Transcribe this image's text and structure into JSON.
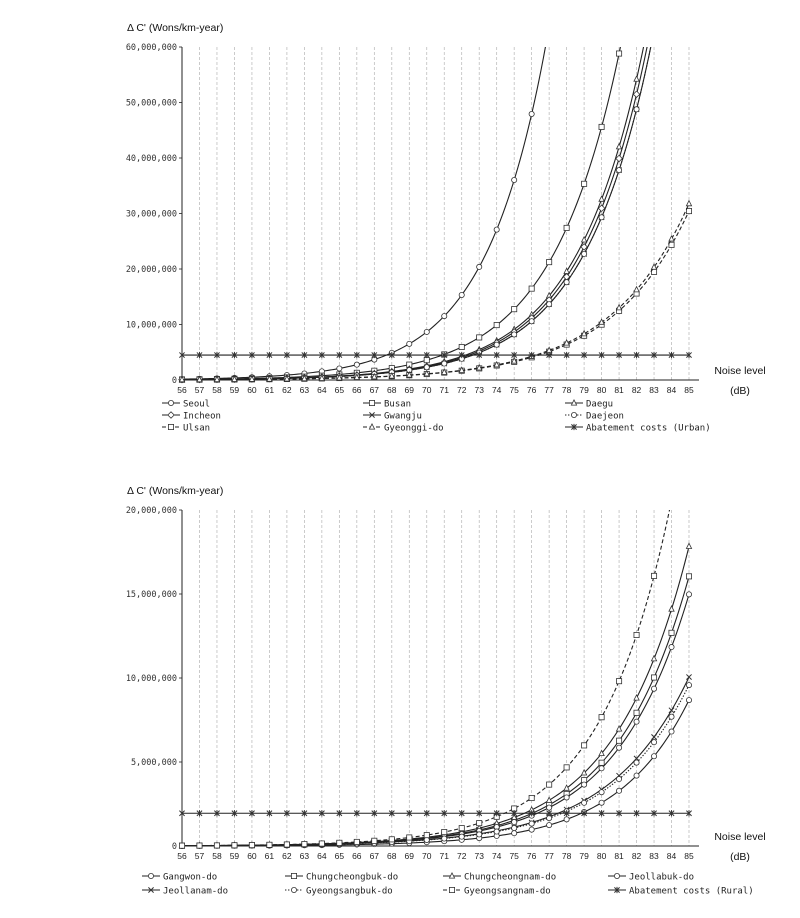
{
  "chart_data": [
    {
      "type": "line",
      "ylabel": "Δ C' (Wons/km-year)",
      "xlabel_line1": "Noise level",
      "xlabel_line2": "(dB)",
      "x": [
        56,
        57,
        58,
        59,
        60,
        61,
        62,
        63,
        64,
        65,
        66,
        67,
        68,
        69,
        70,
        71,
        72,
        73,
        74,
        75,
        76,
        77,
        78,
        79,
        80,
        81,
        82,
        83,
        84,
        85
      ],
      "xlim": [
        56,
        85
      ],
      "ylim": [
        0,
        60000000
      ],
      "yticks": [
        0,
        10000000,
        20000000,
        30000000,
        40000000,
        50000000,
        60000000
      ],
      "ytick_labels": [
        "0",
        "10,000,000",
        "20,000,000",
        "30,000,000",
        "40,000,000",
        "50,000,000",
        "60,000,000"
      ],
      "grid": "vertical dashed",
      "legend_position": "bottom",
      "series": [
        {
          "name": "Seoul",
          "marker": "circle",
          "dash": "solid",
          "model": {
            "a": 60,
            "b": 500000,
            "c": 1.33
          }
        },
        {
          "name": "Busan",
          "marker": "square",
          "dash": "solid",
          "model": {
            "a": 60,
            "b": 280000,
            "c": 1.29
          }
        },
        {
          "name": "Daegu",
          "marker": "triangle",
          "dash": "solid",
          "model": {
            "a": 60,
            "b": 200000,
            "c": 1.29
          }
        },
        {
          "name": "Incheon",
          "marker": "diamond",
          "dash": "solid",
          "model": {
            "a": 60,
            "b": 190000,
            "c": 1.29
          }
        },
        {
          "name": "Gwangju",
          "marker": "x",
          "dash": "solid",
          "model": {
            "a": 60,
            "b": 180000,
            "c": 1.29
          }
        },
        {
          "name": "Daejeon",
          "marker": "circle",
          "dash": "dotted",
          "model": {
            "a": 60,
            "b": 180000,
            "c": 1.29
          }
        },
        {
          "name": "Ulsan",
          "marker": "square",
          "dash": "dashed",
          "model": {
            "a": 60,
            "b": 115000,
            "c": 1.25
          }
        },
        {
          "name": "Gyeonggi-do",
          "marker": "triangle",
          "dash": "dashed",
          "model": {
            "a": 60,
            "b": 120000,
            "c": 1.25
          }
        },
        {
          "name": "Abatement costs (Urban)",
          "marker": "asterisk",
          "dash": "solid",
          "constant": 4500000
        }
      ]
    },
    {
      "type": "line",
      "ylabel": "Δ C' (Wons/km-year)",
      "xlabel_line1": "Noise level",
      "xlabel_line2": "(dB)",
      "x": [
        56,
        57,
        58,
        59,
        60,
        61,
        62,
        63,
        64,
        65,
        66,
        67,
        68,
        69,
        70,
        71,
        72,
        73,
        74,
        75,
        76,
        77,
        78,
        79,
        80,
        81,
        82,
        83,
        84,
        85
      ],
      "xlim": [
        56,
        85
      ],
      "ylim": [
        0,
        20000000
      ],
      "yticks": [
        0,
        5000000,
        10000000,
        15000000,
        20000000
      ],
      "ytick_labels": [
        "0",
        "5,000,000",
        "10,000,000",
        "15,000,000",
        "20,000,000"
      ],
      "grid": "vertical dashed",
      "legend_position": "bottom",
      "series": [
        {
          "name": "Gangwon-do",
          "marker": "circle",
          "dash": "solid",
          "model": {
            "a": 60,
            "b": 20000,
            "c": 1.275
          }
        },
        {
          "name": "Chungcheongbuk-do",
          "marker": "square",
          "dash": "solid",
          "model": {
            "a": 60,
            "b": 45000,
            "c": 1.265
          }
        },
        {
          "name": "Chungcheongnam-do",
          "marker": "triangle",
          "dash": "solid",
          "model": {
            "a": 60,
            "b": 50000,
            "c": 1.265
          }
        },
        {
          "name": "Jeollabuk-do",
          "marker": "circle",
          "dash": "solid",
          "model": {
            "a": 60,
            "b": 42000,
            "c": 1.265
          }
        },
        {
          "name": "Jeollanam-do",
          "marker": "x",
          "dash": "solid",
          "model": {
            "a": 60,
            "b": 42000,
            "c": 1.245
          }
        },
        {
          "name": "Gyeongsangbuk-do",
          "marker": "circle",
          "dash": "dotted",
          "model": {
            "a": 60,
            "b": 40000,
            "c": 1.245
          }
        },
        {
          "name": "Gyeongsangnam-do",
          "marker": "square",
          "dash": "dashed",
          "model": {
            "a": 60,
            "b": 55000,
            "c": 1.28
          }
        },
        {
          "name": "Abatement costs (Rural)",
          "marker": "asterisk",
          "dash": "solid",
          "constant": 1950000
        }
      ]
    }
  ]
}
